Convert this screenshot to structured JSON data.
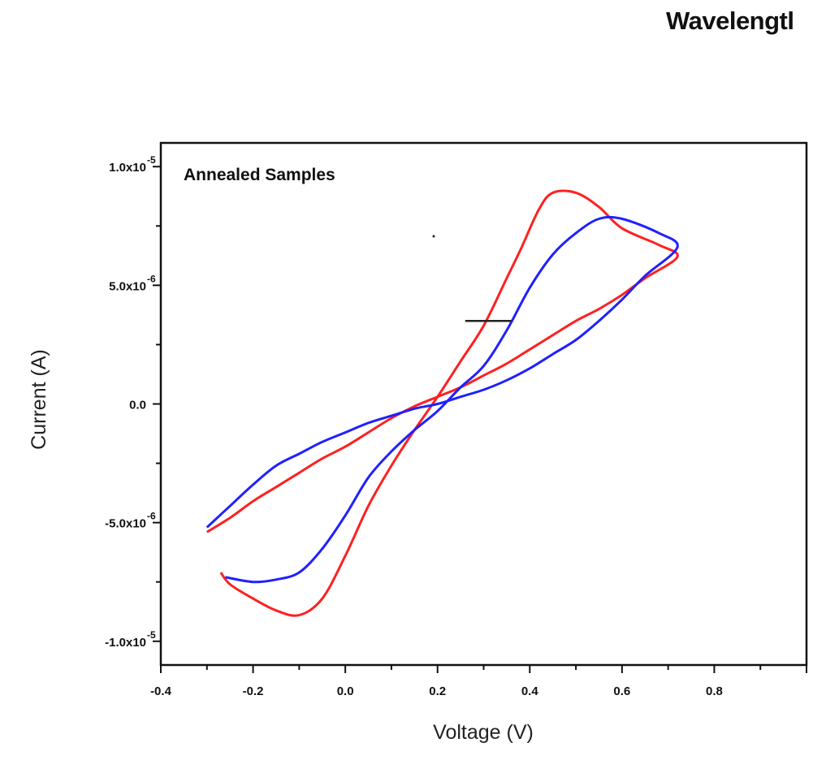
{
  "page_text": {
    "top_right": "Wavelengtl"
  },
  "chart_data": {
    "type": "line",
    "annotation": "Annealed Samples",
    "xlabel": "Voltage (V)",
    "ylabel": "Current (A)",
    "xlim": [
      -0.4,
      1.0
    ],
    "ylim": [
      -1.1e-05,
      1.1e-05
    ],
    "xticks": [
      {
        "value": -0.4,
        "label": "-0.4"
      },
      {
        "value": -0.2,
        "label": "-0.2"
      },
      {
        "value": 0.0,
        "label": "0.0"
      },
      {
        "value": 0.2,
        "label": "0.2"
      },
      {
        "value": 0.4,
        "label": "0.4"
      },
      {
        "value": 0.6,
        "label": "0.6"
      },
      {
        "value": 0.8,
        "label": "0.8"
      }
    ],
    "yticks": [
      {
        "value": 1e-05,
        "label": "1.0x10",
        "exp": "-5"
      },
      {
        "value": 5e-06,
        "label": "5.0x10",
        "exp": "-6"
      },
      {
        "value": 0,
        "label": "0.0",
        "exp": ""
      },
      {
        "value": -5e-06,
        "label": "-5.0x10",
        "exp": "-6"
      },
      {
        "value": -1e-05,
        "label": "-1.0x10",
        "exp": "-5"
      }
    ],
    "grid": false,
    "legend": null,
    "marker_segment": {
      "x": [
        0.26,
        0.36
      ],
      "y": 3.5e-06
    },
    "series": [
      {
        "color": "#ff2020",
        "x": [
          -0.3,
          -0.25,
          -0.2,
          -0.15,
          -0.1,
          -0.05,
          0.0,
          0.05,
          0.1,
          0.15,
          0.2,
          0.25,
          0.3,
          0.35,
          0.4,
          0.45,
          0.5,
          0.55,
          0.6,
          0.65,
          0.72,
          0.68,
          0.6,
          0.55,
          0.5,
          0.45,
          0.42,
          0.38,
          0.35,
          0.3,
          0.25,
          0.2,
          0.15,
          0.1,
          0.05,
          0.0,
          -0.05,
          -0.1,
          -0.15,
          -0.2,
          -0.25,
          -0.27
        ],
        "y": [
          -5.4e-06,
          -4.8e-06,
          -4.1e-06,
          -3.5e-06,
          -2.9e-06,
          -2.3e-06,
          -1.8e-06,
          -1.2e-06,
          -6e-07,
          -1e-07,
          3e-07,
          7e-07,
          1.2e-06,
          1.7e-06,
          2.3e-06,
          2.9e-06,
          3.5e-06,
          4e-06,
          4.6e-06,
          5.3e-06,
          6.2e-06,
          6.7e-06,
          7.4e-06,
          8.3e-06,
          8.9e-06,
          8.9e-06,
          8.2e-06,
          6.5e-06,
          5.3e-06,
          3.3e-06,
          1.8e-06,
          3e-07,
          -1.1e-06,
          -2.6e-06,
          -4.3e-06,
          -6.4e-06,
          -8.2e-06,
          -8.9e-06,
          -8.7e-06,
          -8.2e-06,
          -7.6e-06,
          -7.1e-06
        ]
      },
      {
        "color": "#2020ff",
        "x": [
          -0.3,
          -0.25,
          -0.2,
          -0.15,
          -0.1,
          -0.05,
          0.0,
          0.05,
          0.1,
          0.15,
          0.2,
          0.25,
          0.3,
          0.35,
          0.4,
          0.45,
          0.5,
          0.55,
          0.6,
          0.65,
          0.72,
          0.68,
          0.6,
          0.55,
          0.5,
          0.45,
          0.4,
          0.35,
          0.3,
          0.25,
          0.2,
          0.15,
          0.1,
          0.05,
          0.0,
          -0.05,
          -0.1,
          -0.15,
          -0.2,
          -0.26
        ],
        "y": [
          -5.2e-06,
          -4.3e-06,
          -3.4e-06,
          -2.6e-06,
          -2.1e-06,
          -1.6e-06,
          -1.2e-06,
          -8e-07,
          -5e-07,
          -2e-07,
          0,
          3e-07,
          6e-07,
          1e-06,
          1.5e-06,
          2.1e-06,
          2.7e-06,
          3.5e-06,
          4.4e-06,
          5.4e-06,
          6.6e-06,
          7.2e-06,
          7.8e-06,
          7.8e-06,
          7.2e-06,
          6.3e-06,
          4.9e-06,
          3.1e-06,
          1.6e-06,
          7e-07,
          -3e-07,
          -1.1e-06,
          -2e-06,
          -3.1e-06,
          -4.7e-06,
          -6.1e-06,
          -7.1e-06,
          -7.4e-06,
          -7.5e-06,
          -7.3e-06
        ]
      }
    ]
  }
}
